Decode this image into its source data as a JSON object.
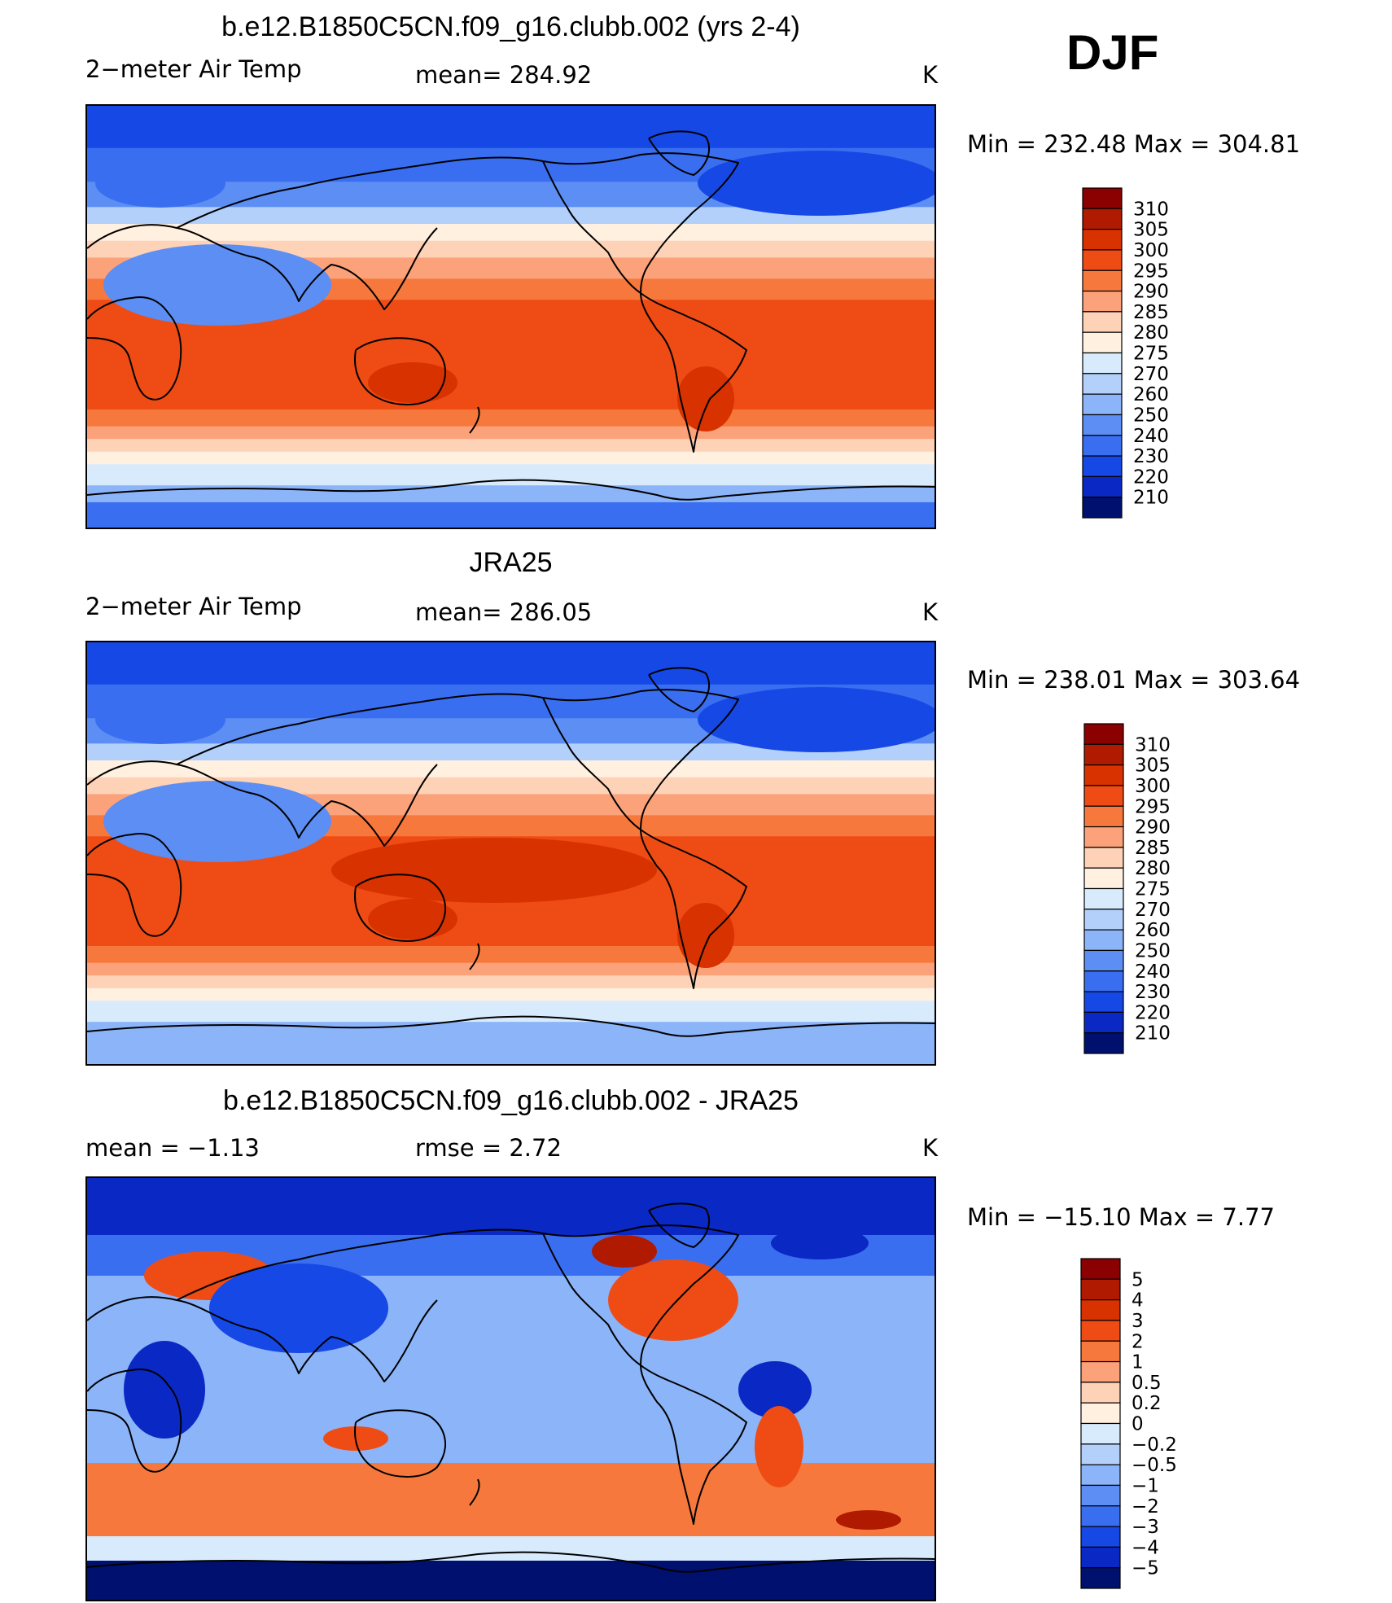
{
  "season": "DJF",
  "panels": [
    {
      "title": "b.e12.B1850C5CN.f09_g16.clubb.002 (yrs 2-4)",
      "left_label": "2−meter Air Temp",
      "center_label": "mean=  284.92",
      "units": "K",
      "minmax": "Min  =  232.48  Max  =  304.81",
      "map_type": "field"
    },
    {
      "title": "JRA25",
      "left_label": "2−meter Air Temp",
      "center_label": "mean=  286.05",
      "units": "K",
      "minmax": "Min  =  238.01  Max  =  303.64",
      "map_type": "field"
    },
    {
      "title": "b.e12.B1850C5CN.f09_g16.clubb.002 - JRA25",
      "left_label": "mean  =    −1.13",
      "center_label": "rmse  =     2.72",
      "units": "K",
      "minmax": "Min  =  −15.10  Max  =     7.77",
      "map_type": "difference"
    }
  ],
  "colorbars": {
    "field": {
      "labels": [
        "310",
        "305",
        "300",
        "295",
        "290",
        "285",
        "280",
        "275",
        "270",
        "260",
        "250",
        "240",
        "230",
        "220",
        "210"
      ],
      "colors": [
        "#8b0000",
        "#b01a00",
        "#d83200",
        "#ee4c14",
        "#f7783c",
        "#fca27a",
        "#fdd2b6",
        "#fff0e0",
        "#d8ebfd",
        "#b3d0fb",
        "#8cb4f8",
        "#5c8ef3",
        "#3a6ef0",
        "#1648e6",
        "#0a28c4",
        "#00106e"
      ]
    },
    "difference": {
      "labels": [
        "5",
        "4",
        "3",
        "2",
        "1",
        "0.5",
        "0.2",
        "0",
        "−0.2",
        "−0.5",
        "−1",
        "−2",
        "−3",
        "−4",
        "−5"
      ],
      "colors": [
        "#8b0000",
        "#b01a00",
        "#d83200",
        "#ee4c14",
        "#f7783c",
        "#fca27a",
        "#fdd2b6",
        "#fff0e0",
        "#d8ebfd",
        "#b3d0fb",
        "#8cb4f8",
        "#5c8ef3",
        "#3a6ef0",
        "#1648e6",
        "#0a28c4",
        "#00106e"
      ]
    }
  }
}
